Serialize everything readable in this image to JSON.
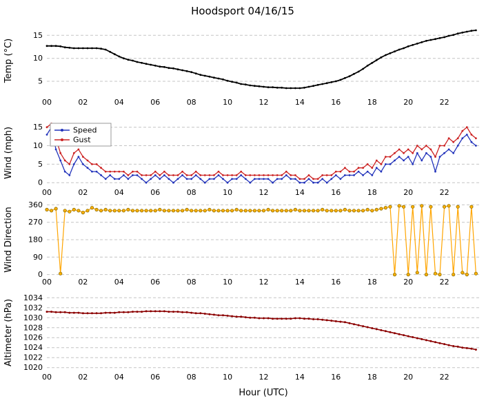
{
  "title": "Hoodsport 04/16/15",
  "xlabel": "Hour (UTC)",
  "x_ticks": [
    0,
    2,
    4,
    6,
    8,
    10,
    12,
    14,
    16,
    18,
    20,
    22
  ],
  "x_tick_labels": [
    "00",
    "02",
    "04",
    "06",
    "08",
    "10",
    "12",
    "14",
    "16",
    "18",
    "20",
    "22"
  ],
  "x_hours": [
    0,
    0.25,
    0.5,
    0.75,
    1,
    1.25,
    1.5,
    1.75,
    2,
    2.25,
    2.5,
    2.75,
    3,
    3.25,
    3.5,
    3.75,
    4,
    4.25,
    4.5,
    4.75,
    5,
    5.25,
    5.5,
    5.75,
    6,
    6.25,
    6.5,
    6.75,
    7,
    7.25,
    7.5,
    7.75,
    8,
    8.25,
    8.5,
    8.75,
    9,
    9.25,
    9.5,
    9.75,
    10,
    10.25,
    10.5,
    10.75,
    11,
    11.25,
    11.5,
    11.75,
    12,
    12.25,
    12.5,
    12.75,
    13,
    13.25,
    13.5,
    13.75,
    14,
    14.25,
    14.5,
    14.75,
    15,
    15.25,
    15.5,
    15.75,
    16,
    16.25,
    16.5,
    16.75,
    17,
    17.25,
    17.5,
    17.75,
    18,
    18.25,
    18.5,
    18.75,
    19,
    19.25,
    19.5,
    19.75,
    20,
    20.25,
    20.5,
    20.75,
    21,
    21.25,
    21.5,
    21.75,
    22,
    22.25,
    22.5,
    22.75,
    23,
    23.25,
    23.5,
    23.75
  ],
  "chart_data": [
    {
      "id": "temp",
      "type": "line",
      "ylabel": "Temp (°C)",
      "ylim": [
        2,
        17
      ],
      "yticks": [
        5,
        10,
        15
      ],
      "legend": false,
      "series": [
        {
          "name": "Temp",
          "color": "#000000",
          "line_width": 1.8,
          "marker_r": 1.4,
          "values": [
            12.7,
            12.7,
            12.7,
            12.6,
            12.4,
            12.3,
            12.2,
            12.2,
            12.2,
            12.2,
            12.2,
            12.2,
            12.1,
            11.9,
            11.4,
            10.9,
            10.4,
            10.0,
            9.7,
            9.5,
            9.2,
            9.0,
            8.8,
            8.6,
            8.4,
            8.2,
            8.1,
            7.9,
            7.8,
            7.6,
            7.4,
            7.2,
            7.0,
            6.7,
            6.4,
            6.2,
            6.0,
            5.8,
            5.6,
            5.4,
            5.1,
            4.9,
            4.7,
            4.4,
            4.3,
            4.1,
            4.0,
            3.9,
            3.8,
            3.7,
            3.7,
            3.6,
            3.6,
            3.5,
            3.5,
            3.5,
            3.5,
            3.6,
            3.8,
            4.0,
            4.2,
            4.4,
            4.6,
            4.8,
            5.0,
            5.3,
            5.7,
            6.1,
            6.6,
            7.1,
            7.7,
            8.4,
            9.0,
            9.6,
            10.2,
            10.7,
            11.1,
            11.5,
            11.9,
            12.2,
            12.6,
            12.9,
            13.2,
            13.5,
            13.8,
            14.0,
            14.2,
            14.4,
            14.6,
            14.9,
            15.1,
            15.4,
            15.6,
            15.8,
            16.0,
            16.1
          ]
        }
      ]
    },
    {
      "id": "wind",
      "type": "line",
      "ylabel": "Wind (mph)",
      "ylim": [
        -0.9,
        17
      ],
      "yticks": [
        0,
        5,
        10,
        15
      ],
      "legend": true,
      "series": [
        {
          "name": "Speed",
          "color": "#2233bb",
          "line_width": 1.3,
          "marker_r": 1.4,
          "values": [
            13,
            15,
            9,
            6,
            3,
            2,
            5,
            7,
            5,
            4,
            3,
            3,
            2,
            1,
            2,
            1,
            1,
            2,
            1,
            2,
            2,
            1,
            0,
            1,
            2,
            1,
            2,
            1,
            0,
            1,
            2,
            1,
            1,
            2,
            1,
            0,
            1,
            1,
            2,
            1,
            0,
            1,
            1,
            2,
            1,
            0,
            1,
            1,
            1,
            1,
            0,
            1,
            1,
            2,
            1,
            1,
            0,
            0,
            1,
            0,
            0,
            1,
            0,
            1,
            2,
            1,
            2,
            2,
            2,
            3,
            2,
            3,
            2,
            4,
            3,
            5,
            5,
            6,
            7,
            6,
            7,
            5,
            8,
            6,
            8,
            7,
            3,
            7,
            8,
            9,
            8,
            10,
            12,
            13,
            11,
            10
          ]
        },
        {
          "name": "Gust",
          "color": "#cc2222",
          "line_width": 1.3,
          "marker_r": 1.4,
          "values": [
            15,
            16,
            12,
            8,
            6,
            5,
            8,
            9,
            7,
            6,
            5,
            5,
            4,
            3,
            3,
            3,
            3,
            3,
            2,
            3,
            3,
            2,
            2,
            2,
            3,
            2,
            3,
            2,
            2,
            2,
            3,
            2,
            2,
            3,
            2,
            2,
            2,
            2,
            3,
            2,
            2,
            2,
            2,
            3,
            2,
            2,
            2,
            2,
            2,
            2,
            2,
            2,
            2,
            3,
            2,
            2,
            1,
            1,
            2,
            1,
            1,
            2,
            2,
            2,
            3,
            3,
            4,
            3,
            3,
            4,
            4,
            5,
            4,
            6,
            5,
            7,
            7,
            8,
            9,
            8,
            9,
            8,
            10,
            9,
            10,
            9,
            7,
            10,
            10,
            12,
            11,
            12,
            14,
            15,
            13,
            12
          ]
        }
      ]
    },
    {
      "id": "direction",
      "type": "line",
      "ylabel": "Wind Direction",
      "ylim": [
        -12,
        372
      ],
      "yticks": [
        0,
        90,
        180,
        270,
        360
      ],
      "legend": false,
      "series": [
        {
          "name": "Direction",
          "color": "#ffa500",
          "line_width": 1.2,
          "marker_r": 2.2,
          "marker_fill": "#ffb000",
          "marker_stroke": "#8a6d00",
          "values": [
            335,
            330,
            340,
            5,
            330,
            325,
            335,
            330,
            320,
            330,
            345,
            335,
            330,
            335,
            330,
            330,
            330,
            330,
            335,
            330,
            330,
            330,
            330,
            330,
            330,
            335,
            330,
            330,
            330,
            330,
            330,
            335,
            330,
            330,
            330,
            330,
            335,
            330,
            330,
            330,
            330,
            330,
            335,
            330,
            330,
            330,
            330,
            330,
            330,
            335,
            330,
            330,
            330,
            330,
            330,
            335,
            330,
            330,
            330,
            330,
            330,
            335,
            330,
            330,
            330,
            330,
            335,
            330,
            330,
            330,
            330,
            335,
            330,
            335,
            340,
            345,
            350,
            0,
            355,
            350,
            0,
            350,
            10,
            355,
            0,
            350,
            5,
            0,
            350,
            355,
            0,
            350,
            10,
            0,
            350,
            5
          ]
        }
      ]
    },
    {
      "id": "altimeter",
      "type": "line",
      "ylabel": "Altimeter (hPa)",
      "ylim": [
        1019.4,
        1034.6
      ],
      "yticks": [
        1020,
        1022,
        1024,
        1026,
        1028,
        1030,
        1032,
        1034
      ],
      "legend": false,
      "series": [
        {
          "name": "Altimeter",
          "color": "#8b0000",
          "line_width": 1.6,
          "marker_r": 1.5,
          "values": [
            1031.2,
            1031.2,
            1031.1,
            1031.1,
            1031.1,
            1031.0,
            1031.0,
            1031.0,
            1030.9,
            1030.9,
            1030.9,
            1030.9,
            1030.9,
            1031.0,
            1031.0,
            1031.0,
            1031.1,
            1031.1,
            1031.1,
            1031.2,
            1031.2,
            1031.2,
            1031.3,
            1031.3,
            1031.3,
            1031.3,
            1031.3,
            1031.2,
            1031.2,
            1031.2,
            1031.1,
            1031.1,
            1031.0,
            1030.9,
            1030.9,
            1030.8,
            1030.7,
            1030.6,
            1030.5,
            1030.5,
            1030.4,
            1030.3,
            1030.2,
            1030.2,
            1030.1,
            1030.0,
            1030.0,
            1029.9,
            1029.9,
            1029.9,
            1029.8,
            1029.8,
            1029.8,
            1029.8,
            1029.8,
            1029.9,
            1029.9,
            1029.8,
            1029.8,
            1029.7,
            1029.7,
            1029.6,
            1029.5,
            1029.4,
            1029.3,
            1029.2,
            1029.1,
            1028.9,
            1028.7,
            1028.5,
            1028.3,
            1028.1,
            1027.9,
            1027.7,
            1027.5,
            1027.3,
            1027.1,
            1026.9,
            1026.7,
            1026.5,
            1026.3,
            1026.1,
            1025.9,
            1025.7,
            1025.5,
            1025.3,
            1025.1,
            1024.9,
            1024.7,
            1024.5,
            1024.3,
            1024.2,
            1024.0,
            1023.9,
            1023.8,
            1023.6
          ]
        }
      ]
    }
  ]
}
